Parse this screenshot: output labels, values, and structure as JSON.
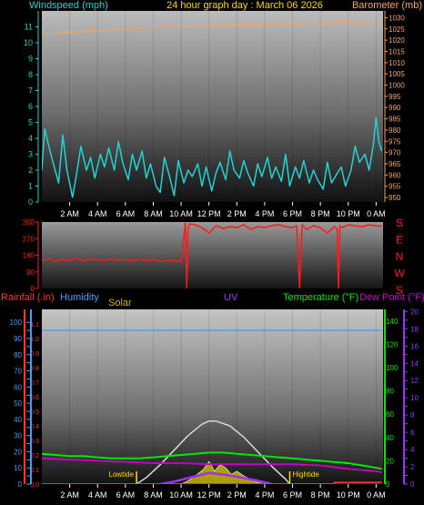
{
  "header": {
    "left_title": "Windspeed (mph)",
    "center_title": "24 hour graph day : March 06 2026",
    "right_title": "Barometer (mb)"
  },
  "colors": {
    "wind": "#22d3d3",
    "barometer": "#f4a460",
    "direction": "#ff1a1a",
    "rain": "#ff3030",
    "humidity": "#3aa0ff",
    "solar": "#c8b400",
    "uv": "#9b30ff",
    "temperature": "#00e800",
    "dewpoint": "#cc00cc",
    "title": "#ffd700",
    "axis_text": "#ffffff"
  },
  "time_axis": {
    "labels": [
      "2 AM",
      "4 AM",
      "6 AM",
      "8 AM",
      "10 AM",
      "12 PM",
      "2 PM",
      "4 PM",
      "6 PM",
      "8 PM",
      "10 PM",
      "0 AM"
    ],
    "hours": [
      2,
      4,
      6,
      8,
      10,
      12,
      14,
      16,
      18,
      20,
      22,
      24
    ]
  },
  "chart_data": [
    {
      "type": "line",
      "panel": "wind-barometer",
      "x_unit": "hour",
      "xlim": [
        0,
        24.5
      ],
      "left_axis": {
        "label": "Windspeed (mph)",
        "ylim": [
          0,
          12
        ],
        "ticks": [
          0,
          1,
          2,
          3,
          4,
          5,
          6,
          7,
          8,
          9,
          10,
          11
        ]
      },
      "right_axis": {
        "label": "Barometer (mb)",
        "ylim": [
          948,
          1033
        ],
        "ticks": [
          950,
          955,
          960,
          965,
          970,
          975,
          980,
          985,
          990,
          995,
          1000,
          1005,
          1010,
          1015,
          1020,
          1025,
          1030
        ]
      },
      "series": [
        {
          "name": "Windspeed (mph)",
          "axis": "left",
          "x": [
            0.0,
            0.2,
            0.5,
            0.8,
            1.2,
            1.5,
            1.8,
            2.2,
            2.5,
            2.8,
            3.2,
            3.5,
            3.8,
            4.2,
            4.5,
            4.8,
            5.2,
            5.5,
            5.8,
            6.2,
            6.5,
            6.8,
            7.2,
            7.5,
            7.8,
            8.2,
            8.5,
            8.8,
            9.2,
            9.5,
            9.8,
            10.2,
            10.5,
            10.8,
            11.2,
            11.5,
            11.8,
            12.2,
            12.5,
            12.8,
            13.2,
            13.5,
            13.8,
            14.2,
            14.5,
            14.8,
            15.2,
            15.5,
            15.8,
            16.2,
            16.5,
            16.8,
            17.2,
            17.5,
            17.8,
            18.2,
            18.5,
            18.8,
            19.2,
            19.5,
            19.8,
            20.2,
            20.5,
            20.8,
            21.2,
            21.5,
            21.8,
            22.2,
            22.5,
            22.8,
            23.2,
            23.5,
            23.8,
            24.0,
            24.2,
            24.4
          ],
          "y": [
            2.0,
            4.6,
            3.5,
            2.5,
            1.2,
            4.2,
            2.0,
            0.3,
            1.8,
            3.5,
            2.0,
            2.8,
            1.5,
            3.0,
            2.2,
            3.4,
            2.0,
            3.8,
            2.5,
            1.4,
            3.0,
            2.0,
            3.2,
            1.5,
            2.4,
            1.0,
            0.6,
            2.8,
            1.5,
            0.4,
            2.6,
            1.2,
            2.0,
            1.6,
            2.4,
            1.0,
            2.2,
            0.7,
            1.8,
            2.5,
            1.4,
            3.2,
            2.0,
            1.5,
            2.6,
            1.8,
            1.0,
            2.4,
            1.6,
            2.8,
            1.5,
            2.2,
            1.3,
            3.0,
            1.0,
            2.2,
            1.5,
            2.6,
            1.2,
            2.0,
            1.4,
            0.8,
            2.5,
            1.2,
            1.8,
            2.2,
            1.0,
            2.0,
            3.5,
            2.5,
            3.0,
            2.0,
            3.6,
            5.3,
            3.8,
            3.2
          ]
        },
        {
          "name": "Barometer (mb)",
          "axis": "right",
          "x": [
            0,
            2,
            4,
            6,
            8,
            10,
            12,
            14,
            16,
            18,
            20,
            22,
            24.4
          ],
          "y": [
            1022.8,
            1023.5,
            1024.2,
            1025.0,
            1025.6,
            1026.2,
            1026.6,
            1026.9,
            1027.1,
            1027.3,
            1027.7,
            1028.0,
            1027.5
          ]
        }
      ]
    },
    {
      "type": "line",
      "panel": "wind-direction",
      "x_unit": "hour",
      "xlim": [
        0,
        24.5
      ],
      "left_axis": {
        "label": "",
        "ylim": [
          0,
          360
        ],
        "ticks": [
          0,
          90,
          180,
          270,
          360
        ]
      },
      "right_labels": [
        "S",
        "E",
        "N",
        "W",
        "S"
      ],
      "series": [
        {
          "name": "Wind direction",
          "x": [
            0.0,
            0.5,
            1.0,
            1.5,
            2.0,
            2.5,
            3.0,
            3.5,
            4.0,
            4.5,
            5.0,
            5.5,
            6.0,
            6.5,
            7.0,
            7.5,
            8.0,
            8.5,
            9.0,
            9.5,
            10.0,
            10.3,
            10.4,
            10.5,
            10.6,
            11.0,
            11.5,
            12.0,
            12.5,
            13.0,
            13.5,
            14.0,
            14.5,
            15.0,
            15.5,
            16.0,
            16.5,
            17.0,
            17.5,
            18.0,
            18.3,
            18.5,
            18.7,
            19.0,
            19.5,
            20.0,
            20.5,
            21.0,
            21.2,
            21.3,
            21.4,
            21.6,
            22.0,
            22.5,
            23.0,
            23.5,
            24.0,
            24.4
          ],
          "y": [
            150,
            162,
            145,
            158,
            150,
            165,
            148,
            160,
            155,
            150,
            162,
            152,
            158,
            148,
            160,
            150,
            158,
            145,
            152,
            150,
            148,
            355,
            0,
            320,
            350,
            345,
            330,
            300,
            340,
            325,
            335,
            330,
            345,
            320,
            335,
            330,
            340,
            345,
            335,
            330,
            340,
            0,
            345,
            320,
            340,
            330,
            300,
            335,
            325,
            0,
            340,
            330,
            345,
            340,
            335,
            345,
            340,
            338
          ]
        }
      ]
    },
    {
      "type": "line",
      "panel": "rain-humidity-solar-uv-temperature",
      "x_unit": "hour",
      "xlim": [
        0,
        24.5
      ],
      "axes": [
        {
          "name": "Rainfall (.in)",
          "ylim": [
            0,
            1.2
          ],
          "ticks": [
            0,
            0.1,
            0.2,
            0.3,
            0.4,
            0.5,
            0.6,
            0.7,
            0.8,
            0.9,
            1.0,
            1.1
          ]
        },
        {
          "name": "Humidity",
          "ylim": [
            0,
            108
          ],
          "ticks": [
            0,
            5,
            10,
            15,
            20,
            25,
            30,
            35,
            40,
            45,
            50,
            55,
            60,
            65,
            70,
            75,
            80,
            85,
            90,
            95,
            100
          ]
        },
        {
          "name": "Temperature (°F)",
          "ylim": [
            0,
            150
          ],
          "ticks": [
            0,
            10,
            20,
            30,
            40,
            50,
            60,
            70,
            80,
            90,
            100,
            110,
            120,
            130,
            140
          ]
        },
        {
          "name": "UV",
          "ylim": [
            0,
            20.25
          ],
          "ticks": [
            0,
            1,
            2,
            3,
            4,
            5,
            6,
            7,
            8,
            9,
            10,
            11,
            12,
            13,
            14,
            15,
            16,
            17,
            18,
            19,
            20
          ]
        }
      ],
      "labels": {
        "rain": "Rainfall (.in)",
        "humidity": "Humidity",
        "solar": "Solar",
        "uv": "UV",
        "temperature": "Temperature (°F)",
        "dewpoint": "Dew Point (°F)"
      },
      "tide_events": [
        {
          "label": "Lowtide",
          "hour": 6.8
        },
        {
          "label": "Hightide",
          "hour": 17.8
        }
      ],
      "series": [
        {
          "name": "Humidity",
          "axis": "Humidity",
          "x": [
            0,
            24.4
          ],
          "y": [
            95,
            95
          ]
        },
        {
          "name": "Temperature (°F)",
          "axis": "Temperature (°F)",
          "x": [
            0,
            1,
            2,
            3,
            4,
            5,
            6,
            7,
            8,
            9,
            10,
            11,
            12,
            13,
            14,
            15,
            16,
            17,
            18,
            19,
            20,
            21,
            22,
            23,
            24,
            24.4
          ],
          "y": [
            26,
            25,
            24,
            24,
            23,
            22,
            22,
            22,
            23,
            24,
            25,
            26,
            27,
            27,
            26,
            25,
            24,
            23,
            22,
            21,
            20,
            19,
            18,
            16,
            14,
            13
          ]
        },
        {
          "name": "Dew Point (°F)",
          "axis": "Temperature (°F)",
          "x": [
            0,
            2,
            4,
            6,
            8,
            10,
            12,
            14,
            16,
            18,
            20,
            22,
            24,
            24.4
          ],
          "y": [
            22,
            21,
            20,
            19,
            18,
            18,
            17,
            17,
            17,
            17,
            16,
            13,
            11,
            10
          ]
        },
        {
          "name": "Solar",
          "axis": "Humidity",
          "x": [
            6.8,
            7.5,
            8.5,
            9.5,
            10.5,
            11.5,
            12.0,
            12.5,
            13.5,
            14.5,
            15.5,
            16.5,
            17.5,
            17.8
          ],
          "y": [
            0,
            4,
            12,
            21,
            30,
            37,
            39,
            39,
            36,
            29,
            20,
            11,
            3,
            0
          ]
        },
        {
          "name": "Solar measured",
          "axis": "Humidity",
          "x": [
            10.0,
            10.5,
            11.0,
            11.3,
            11.6,
            12.0,
            12.4,
            12.8,
            13.2,
            13.6,
            14.0,
            14.5,
            15.0,
            15.5,
            16.0
          ],
          "y": [
            0,
            2,
            5,
            7,
            9,
            14,
            8,
            12,
            10,
            6,
            8,
            5,
            3,
            1,
            0
          ]
        },
        {
          "name": "UV",
          "axis": "UV",
          "x": [
            8.5,
            9.5,
            10.5,
            11.5,
            12.0,
            12.5,
            13.5,
            14.5,
            15.5,
            16.5
          ],
          "y": [
            0,
            0.3,
            0.7,
            1.1,
            1.3,
            1.2,
            1.0,
            0.7,
            0.4,
            0
          ]
        },
        {
          "name": "Rainfall (.in)",
          "axis": "Rainfall (.in)",
          "x": [
            0,
            21.0,
            21.0,
            24.4
          ],
          "y": [
            0,
            0,
            0.01,
            0.01
          ]
        }
      ]
    }
  ]
}
